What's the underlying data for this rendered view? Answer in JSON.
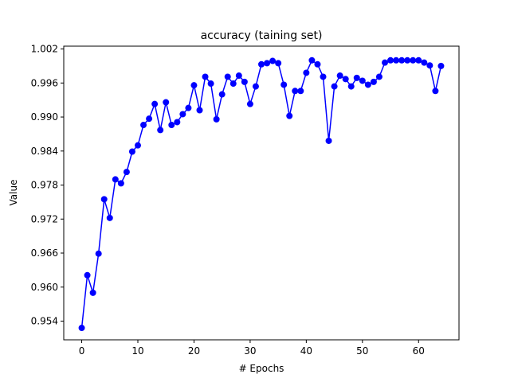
{
  "chart_data": {
    "type": "line",
    "title": "accuracy (taining set)",
    "xlabel": "# Epochs",
    "ylabel": "Value",
    "xlim": [
      -3.2,
      67.2
    ],
    "ylim": [
      0.9507,
      1.0025
    ],
    "x_ticks": [
      0,
      10,
      20,
      30,
      40,
      50,
      60
    ],
    "x_tick_labels": [
      "0",
      "10",
      "20",
      "30",
      "40",
      "50",
      "60"
    ],
    "y_ticks": [
      0.954,
      0.96,
      0.966,
      0.972,
      0.978,
      0.984,
      0.99,
      0.996,
      1.002
    ],
    "y_tick_labels": [
      "0.954",
      "0.960",
      "0.966",
      "0.972",
      "0.978",
      "0.984",
      "0.990",
      "0.996",
      "1.002"
    ],
    "grid": false,
    "series": [
      {
        "color": "#0000ff",
        "marker": "circle",
        "x": [
          0,
          1,
          2,
          3,
          4,
          5,
          6,
          7,
          8,
          9,
          10,
          11,
          12,
          13,
          14,
          15,
          16,
          17,
          18,
          19,
          20,
          21,
          22,
          23,
          24,
          25,
          26,
          27,
          28,
          29,
          30,
          31,
          32,
          33,
          34,
          35,
          36,
          37,
          38,
          39,
          40,
          41,
          42,
          43,
          44,
          45,
          46,
          47,
          48,
          49,
          50,
          51,
          52,
          53,
          54,
          55,
          56,
          57,
          58,
          59,
          60,
          61,
          62,
          63,
          64
        ],
        "y": [
          0.9528,
          0.9621,
          0.959,
          0.9659,
          0.9755,
          0.9722,
          0.979,
          0.9783,
          0.9803,
          0.9839,
          0.985,
          0.9886,
          0.9897,
          0.9923,
          0.9877,
          0.9926,
          0.9886,
          0.9891,
          0.9905,
          0.9916,
          0.9956,
          0.9912,
          0.9971,
          0.9959,
          0.9896,
          0.994,
          0.9971,
          0.9959,
          0.9973,
          0.9962,
          0.9923,
          0.9954,
          0.9993,
          0.9995,
          0.9999,
          0.9995,
          0.9957,
          0.9902,
          0.9946,
          0.9946,
          0.9978,
          1.0,
          0.9993,
          0.9971,
          0.9858,
          0.9954,
          0.9973,
          0.9967,
          0.9954,
          0.9969,
          0.9964,
          0.9957,
          0.9962,
          0.9971,
          0.9996,
          1.0,
          1.0,
          1.0,
          1.0,
          1.0,
          1.0,
          0.9996,
          0.9991,
          0.9946,
          0.999
        ]
      }
    ]
  }
}
